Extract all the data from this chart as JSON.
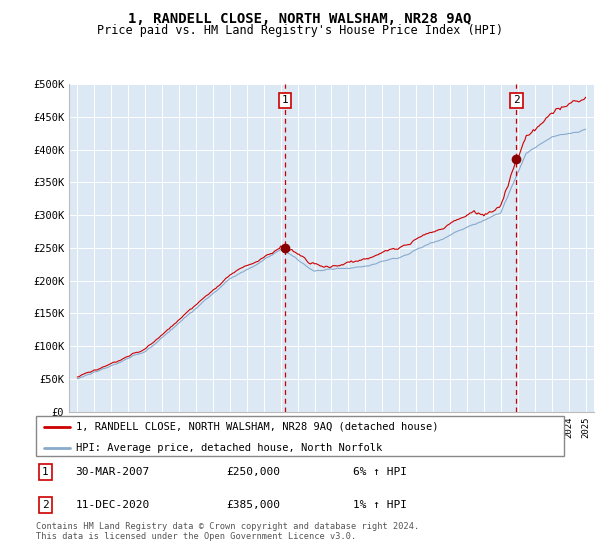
{
  "title": "1, RANDELL CLOSE, NORTH WALSHAM, NR28 9AQ",
  "subtitle": "Price paid vs. HM Land Registry's House Price Index (HPI)",
  "background_color": "#ffffff",
  "plot_bg_color": "#dce9f5",
  "grid_color": "#ffffff",
  "legend_line1": "1, RANDELL CLOSE, NORTH WALSHAM, NR28 9AQ (detached house)",
  "legend_line2": "HPI: Average price, detached house, North Norfolk",
  "line1_color": "#cc0000",
  "line2_color": "#88aacc",
  "annotation1": {
    "label": "1",
    "date_str": "30-MAR-2007",
    "price": "£250,000",
    "pct": "6% ↑ HPI",
    "x_year": 2007.25,
    "y_val": 250000
  },
  "annotation2": {
    "label": "2",
    "date_str": "11-DEC-2020",
    "price": "£385,000",
    "pct": "1% ↑ HPI",
    "x_year": 2020.92,
    "y_val": 385000
  },
  "footer": "Contains HM Land Registry data © Crown copyright and database right 2024.\nThis data is licensed under the Open Government Licence v3.0.",
  "yticks": [
    0,
    50000,
    100000,
    150000,
    200000,
    250000,
    300000,
    350000,
    400000,
    450000,
    500000
  ],
  "ylabels": [
    "£0",
    "£50K",
    "£100K",
    "£150K",
    "£200K",
    "£250K",
    "£300K",
    "£350K",
    "£400K",
    "£450K",
    "£500K"
  ],
  "xmin": 1994.5,
  "xmax": 2025.5,
  "ymin": 0,
  "ymax": 500000,
  "sale1_x": 2007.25,
  "sale1_y": 250000,
  "sale2_x": 2020.92,
  "sale2_y": 385000
}
